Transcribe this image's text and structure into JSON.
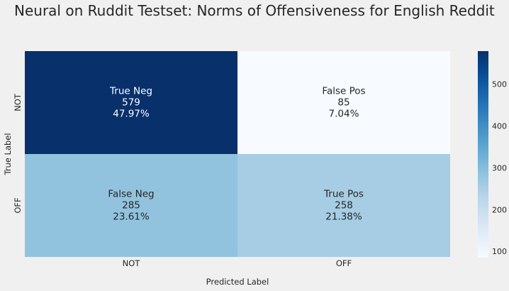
{
  "chart_data": {
    "type": "heatmap",
    "title": "Neural on Ruddit Testset: Norms of Offensiveness for English Reddit",
    "xlabel": "Predicted Label",
    "ylabel": "True Label",
    "x_categories": [
      "NOT",
      "OFF"
    ],
    "y_categories": [
      "NOT",
      "OFF"
    ],
    "cells": [
      [
        {
          "name": "True Neg",
          "count": "579",
          "percent": "47.97%",
          "value": 579
        },
        {
          "name": "False Pos",
          "count": "85",
          "percent": "7.04%",
          "value": 85
        }
      ],
      [
        {
          "name": "False Neg",
          "count": "285",
          "percent": "23.61%",
          "value": 285
        },
        {
          "name": "True Pos",
          "count": "258",
          "percent": "21.38%",
          "value": 258
        }
      ]
    ],
    "colorbar": {
      "colormap": "Blues",
      "min": 85,
      "max": 579,
      "ticks": [
        "100",
        "200",
        "300",
        "400",
        "500"
      ],
      "tick_values": [
        100,
        200,
        300,
        400,
        500
      ]
    },
    "colors": {
      "background": "#f0f0f0",
      "text_dark": "#262626",
      "text_light": "#ffffff"
    }
  }
}
